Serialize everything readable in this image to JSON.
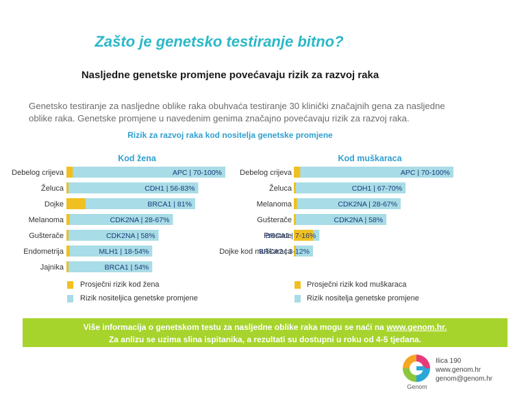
{
  "page": {
    "title": "Zašto je genetsko testiranje bitno?",
    "subtitle": "Nasljedne genetske promjene povećavaju rizik za razvoj raka",
    "intro": "Genetsko testiranje za nasljedne oblike raka obuhvaća testiranje 30 klinički značajnih gena za nasljedne oblike raka. Genetske promjene u navedenim genima značajno povećavaju rizik za razvoj raka.",
    "chart_heading": "Rizik za razvoj raka kod nositelja genetske promjene"
  },
  "colors": {
    "average": "#f0c020",
    "carrier": "#a8dce6",
    "accent": "#2f9fcf",
    "banner": "#a6d42c"
  },
  "chart_data": [
    {
      "type": "bar",
      "orientation": "horizontal",
      "title": "Kod žena",
      "xlim": [
        0,
        100
      ],
      "categories": [
        "Debelog crijeva",
        "Želuca",
        "Dojke",
        "Melanoma",
        "Gušterače",
        "Endometrija",
        "Jajnika"
      ],
      "series": [
        {
          "name": "Prosječni rizik kod žena",
          "values": [
            4,
            1,
            12,
            2,
            1,
            2,
            1
          ]
        },
        {
          "name": "Rizik nositeljica genetske promjene",
          "values": [
            100,
            83,
            81,
            67,
            58,
            54,
            54
          ]
        }
      ],
      "bar_labels": [
        "APC | 70-100%",
        "CDH1 | 56-83%",
        "BRCA1 | 81%",
        "CDK2NA | 28-67%",
        "CDK2NA | 58%",
        "MLH1 | 18-54%",
        "BRCA1 | 54%"
      ],
      "legend": [
        "Prosječni rizik kod žena",
        "Rizik nositeljica genetske promjene"
      ]
    },
    {
      "type": "bar",
      "orientation": "horizontal",
      "title": "Kod muškaraca",
      "xlim": [
        0,
        100
      ],
      "categories": [
        "Debelog crijeva",
        "Želuca",
        "Melanoma",
        "Gušterače",
        "Prostate",
        "Dojke kod muškaraca"
      ],
      "series": [
        {
          "name": "Prosječni rizik kod muškaraca",
          "values": [
            4,
            1,
            2,
            1,
            12,
            1
          ]
        },
        {
          "name": "Rizik nositelja genetske promjene",
          "values": [
            100,
            70,
            67,
            58,
            16,
            12
          ]
        }
      ],
      "bar_labels": [
        "APC | 70-100%",
        "CDH1 | 67-70%",
        "CDK2NA | 28-67%",
        "CDK2NA | 58%",
        "BRCA2 | 7-16%",
        "BRCA2 | 3-12%"
      ],
      "legend": [
        "Prosječni rizik kod muškaraca",
        "Rizik nositelja genetske promjene"
      ]
    }
  ],
  "banner": {
    "line1_text": "Više informacija o genetskom testu za nasljedne oblike raka mogu se naći na ",
    "line1_link": "www.genom.hr.",
    "line2": "Za anlizu se uzima slina ispitanika, a rezultati su dostupni u roku od 4-5 tjedana."
  },
  "contact": {
    "address": "Ilica 190",
    "web": "www.genom.hr",
    "email": "genom@genom.hr"
  },
  "logo": {
    "icon": "genom-logo-icon",
    "text": "Genom"
  }
}
